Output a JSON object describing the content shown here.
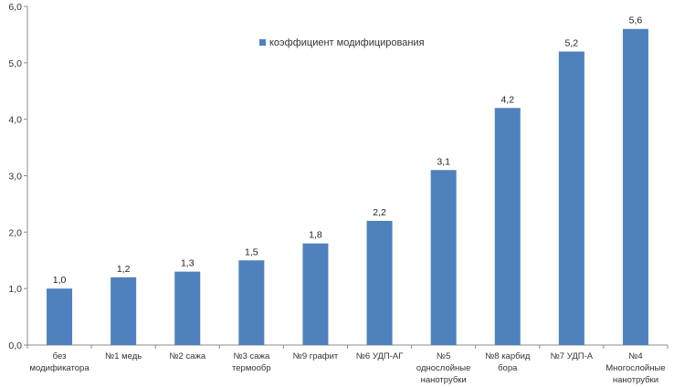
{
  "chart_data": {
    "type": "bar",
    "categories": [
      [
        "без",
        "модификатора"
      ],
      [
        "№1 медь"
      ],
      [
        "№2 сажа"
      ],
      [
        "№3 сажа",
        "термообр"
      ],
      [
        "№9 графит"
      ],
      [
        "№6 УДП-АГ"
      ],
      [
        "№5",
        "однослойные",
        "нанотрубки"
      ],
      [
        "№8 карбид",
        "бора"
      ],
      [
        "№7 УДП-А"
      ],
      [
        "№4",
        "Многослойные",
        "нанотрубки"
      ]
    ],
    "series": [
      {
        "name": "коэффициент модифицирования",
        "values": [
          1.0,
          1.2,
          1.3,
          1.5,
          1.8,
          2.2,
          3.1,
          4.2,
          5.2,
          5.6
        ],
        "color": "#4F81BD"
      }
    ],
    "data_labels": [
      "1,0",
      "1,2",
      "1,3",
      "1,5",
      "1,8",
      "2,2",
      "3,1",
      "4,2",
      "5,2",
      "5,6"
    ],
    "ylim": [
      0,
      6
    ],
    "yticks": [
      0,
      1,
      2,
      3,
      4,
      5,
      6
    ],
    "ytick_labels": [
      "0,0",
      "1,0",
      "2,0",
      "3,0",
      "4,0",
      "5,0",
      "6,0"
    ],
    "grid": false,
    "legend_position": "top-center"
  }
}
